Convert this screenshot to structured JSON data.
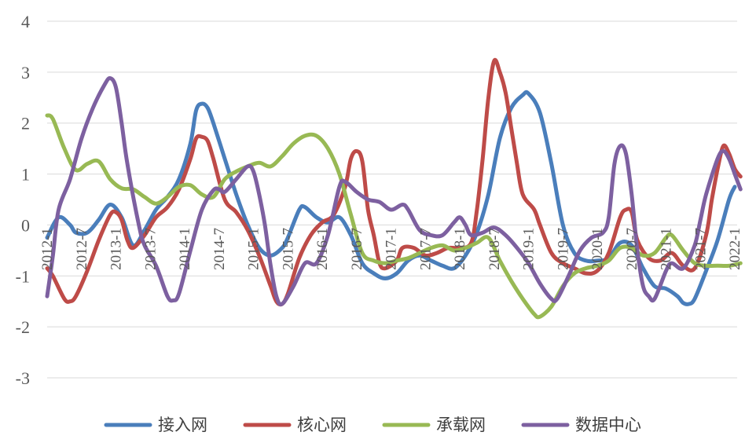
{
  "chart_data": {
    "type": "line",
    "title": "",
    "xlabel": "",
    "ylabel": "",
    "ylim": [
      -3,
      4
    ],
    "yticks": [
      -3,
      -2,
      -1,
      0,
      1,
      2,
      3,
      4
    ],
    "grid": "horizontal",
    "legend_position": "bottom",
    "x_start": "2012-1",
    "x_end": "2022-1",
    "x_tick_labels": [
      "2012-1",
      "2012-7",
      "2013-1",
      "2013-7",
      "2014-1",
      "2014-7",
      "2015-1",
      "2015-7",
      "2016-1",
      "2016-7",
      "2017-1",
      "2017-7",
      "2018-1",
      "2018-7",
      "2019-1",
      "2019-7",
      "2020-1",
      "2020-7",
      "2021-1",
      "2021-7",
      "2022-1"
    ],
    "series": [
      {
        "name": "接入网",
        "color": "#4a7ebb",
        "points": [
          [
            "2012-1",
            -0.25
          ],
          [
            "2012-3",
            0.15
          ],
          [
            "2012-5",
            0.0
          ],
          [
            "2012-6",
            -0.15
          ],
          [
            "2012-8",
            -0.15
          ],
          [
            "2012-10",
            0.1
          ],
          [
            "2012-12",
            0.4
          ],
          [
            "2013-2",
            0.15
          ],
          [
            "2013-4",
            -0.4
          ],
          [
            "2013-6",
            -0.1
          ],
          [
            "2013-8",
            0.3
          ],
          [
            "2013-10",
            0.55
          ],
          [
            "2013-12",
            0.9
          ],
          [
            "2014-2",
            1.6
          ],
          [
            "2014-3",
            2.25
          ],
          [
            "2014-4",
            2.38
          ],
          [
            "2014-5",
            2.3
          ],
          [
            "2014-6",
            2.0
          ],
          [
            "2014-8",
            1.3
          ],
          [
            "2014-10",
            0.6
          ],
          [
            "2014-12",
            0.0
          ],
          [
            "2015-2",
            -0.45
          ],
          [
            "2015-4",
            -0.6
          ],
          [
            "2015-6",
            -0.45
          ],
          [
            "2015-7",
            -0.25
          ],
          [
            "2015-9",
            0.3
          ],
          [
            "2015-10",
            0.35
          ],
          [
            "2015-12",
            0.15
          ],
          [
            "2016-2",
            0.05
          ],
          [
            "2016-4",
            0.15
          ],
          [
            "2016-6",
            -0.2
          ],
          [
            "2016-8",
            -0.75
          ],
          [
            "2016-10",
            -0.95
          ],
          [
            "2016-12",
            -1.05
          ],
          [
            "2017-2",
            -0.95
          ],
          [
            "2017-4",
            -0.7
          ],
          [
            "2017-6",
            -0.6
          ],
          [
            "2017-8",
            -0.7
          ],
          [
            "2017-10",
            -0.8
          ],
          [
            "2017-12",
            -0.85
          ],
          [
            "2018-2",
            -0.6
          ],
          [
            "2018-4",
            -0.15
          ],
          [
            "2018-6",
            0.6
          ],
          [
            "2018-8",
            1.7
          ],
          [
            "2018-10",
            2.3
          ],
          [
            "2018-12",
            2.55
          ],
          [
            "2019-1",
            2.58
          ],
          [
            "2019-3",
            2.2
          ],
          [
            "2019-5",
            1.2
          ],
          [
            "2019-7",
            0.0
          ],
          [
            "2019-9",
            -0.55
          ],
          [
            "2019-11",
            -0.7
          ],
          [
            "2020-1",
            -0.7
          ],
          [
            "2020-3",
            -0.65
          ],
          [
            "2020-5",
            -0.35
          ],
          [
            "2020-7",
            -0.4
          ],
          [
            "2020-9",
            -0.85
          ],
          [
            "2020-11",
            -1.2
          ],
          [
            "2021-1",
            -1.25
          ],
          [
            "2021-3",
            -1.4
          ],
          [
            "2021-4",
            -1.53
          ],
          [
            "2021-5",
            -1.55
          ],
          [
            "2021-6",
            -1.45
          ],
          [
            "2021-8",
            -0.9
          ],
          [
            "2021-10",
            -0.3
          ],
          [
            "2021-12",
            0.5
          ],
          [
            "2022-1",
            0.75
          ]
        ]
      },
      {
        "name": "核心网",
        "color": "#be4b48",
        "points": [
          [
            "2012-1",
            -0.85
          ],
          [
            "2012-2",
            -1.0
          ],
          [
            "2012-4",
            -1.45
          ],
          [
            "2012-5",
            -1.5
          ],
          [
            "2012-6",
            -1.4
          ],
          [
            "2012-8",
            -0.9
          ],
          [
            "2012-10",
            -0.3
          ],
          [
            "2012-12",
            0.2
          ],
          [
            "2013-1",
            0.25
          ],
          [
            "2013-2",
            0.1
          ],
          [
            "2013-3",
            -0.3
          ],
          [
            "2013-4",
            -0.45
          ],
          [
            "2013-6",
            -0.2
          ],
          [
            "2013-8",
            0.15
          ],
          [
            "2013-10",
            0.35
          ],
          [
            "2013-12",
            0.7
          ],
          [
            "2014-2",
            1.3
          ],
          [
            "2014-3",
            1.7
          ],
          [
            "2014-4",
            1.73
          ],
          [
            "2014-5",
            1.65
          ],
          [
            "2014-6",
            1.3
          ],
          [
            "2014-8",
            0.5
          ],
          [
            "2014-10",
            0.25
          ],
          [
            "2014-12",
            -0.1
          ],
          [
            "2015-2",
            -0.6
          ],
          [
            "2015-4",
            -1.2
          ],
          [
            "2015-5",
            -1.5
          ],
          [
            "2015-6",
            -1.55
          ],
          [
            "2015-7",
            -1.35
          ],
          [
            "2015-9",
            -0.65
          ],
          [
            "2015-11",
            -0.2
          ],
          [
            "2016-1",
            0.05
          ],
          [
            "2016-3",
            0.2
          ],
          [
            "2016-5",
            0.75
          ],
          [
            "2016-6",
            1.3
          ],
          [
            "2016-7",
            1.45
          ],
          [
            "2016-8",
            1.25
          ],
          [
            "2016-9",
            0.3
          ],
          [
            "2016-10",
            -0.2
          ],
          [
            "2016-11",
            -0.75
          ],
          [
            "2016-12",
            -0.85
          ],
          [
            "2017-2",
            -0.7
          ],
          [
            "2017-3",
            -0.45
          ],
          [
            "2017-5",
            -0.45
          ],
          [
            "2017-7",
            -0.6
          ],
          [
            "2017-9",
            -0.55
          ],
          [
            "2017-11",
            -0.45
          ],
          [
            "2018-1",
            -0.45
          ],
          [
            "2018-3",
            -0.35
          ],
          [
            "2018-4",
            0.3
          ],
          [
            "2018-5",
            1.3
          ],
          [
            "2018-6",
            2.5
          ],
          [
            "2018-7",
            3.22
          ],
          [
            "2018-8",
            3.0
          ],
          [
            "2018-9",
            2.6
          ],
          [
            "2018-10",
            1.9
          ],
          [
            "2018-11",
            1.2
          ],
          [
            "2018-12",
            0.6
          ],
          [
            "2019-2",
            0.3
          ],
          [
            "2019-3",
            0.0
          ],
          [
            "2019-5",
            -0.55
          ],
          [
            "2019-7",
            -0.75
          ],
          [
            "2019-9",
            -0.85
          ],
          [
            "2019-11",
            -0.95
          ],
          [
            "2020-1",
            -0.9
          ],
          [
            "2020-3",
            -0.55
          ],
          [
            "2020-5",
            0.15
          ],
          [
            "2020-6",
            0.3
          ],
          [
            "2020-7",
            0.25
          ],
          [
            "2020-8",
            -0.3
          ],
          [
            "2020-10",
            -0.65
          ],
          [
            "2020-12",
            -0.7
          ],
          [
            "2021-2",
            -0.55
          ],
          [
            "2021-4",
            -0.8
          ],
          [
            "2021-6",
            -0.85
          ],
          [
            "2021-8",
            -0.2
          ],
          [
            "2021-9",
            0.5
          ],
          [
            "2021-10",
            1.1
          ],
          [
            "2021-11",
            1.55
          ],
          [
            "2021-12",
            1.4
          ],
          [
            "2022-1",
            1.1
          ],
          [
            "2022-2",
            0.95
          ]
        ]
      },
      {
        "name": "承载网",
        "color": "#98b954",
        "points": [
          [
            "2012-1",
            2.15
          ],
          [
            "2012-2",
            2.08
          ],
          [
            "2012-4",
            1.5
          ],
          [
            "2012-6",
            1.08
          ],
          [
            "2012-8",
            1.2
          ],
          [
            "2012-10",
            1.25
          ],
          [
            "2012-12",
            0.9
          ],
          [
            "2013-2",
            0.72
          ],
          [
            "2013-4",
            0.7
          ],
          [
            "2013-6",
            0.55
          ],
          [
            "2013-8",
            0.42
          ],
          [
            "2013-10",
            0.55
          ],
          [
            "2013-12",
            0.75
          ],
          [
            "2014-2",
            0.78
          ],
          [
            "2014-4",
            0.6
          ],
          [
            "2014-6",
            0.55
          ],
          [
            "2014-8",
            0.9
          ],
          [
            "2014-10",
            1.05
          ],
          [
            "2014-12",
            1.15
          ],
          [
            "2015-2",
            1.22
          ],
          [
            "2015-4",
            1.15
          ],
          [
            "2015-6",
            1.35
          ],
          [
            "2015-8",
            1.6
          ],
          [
            "2015-10",
            1.75
          ],
          [
            "2015-12",
            1.75
          ],
          [
            "2016-2",
            1.5
          ],
          [
            "2016-4",
            1.0
          ],
          [
            "2016-6",
            0.2
          ],
          [
            "2016-8",
            -0.55
          ],
          [
            "2016-10",
            -0.7
          ],
          [
            "2016-12",
            -0.75
          ],
          [
            "2017-2",
            -0.7
          ],
          [
            "2017-4",
            -0.65
          ],
          [
            "2017-6",
            -0.55
          ],
          [
            "2017-8",
            -0.45
          ],
          [
            "2017-10",
            -0.4
          ],
          [
            "2017-12",
            -0.5
          ],
          [
            "2018-2",
            -0.45
          ],
          [
            "2018-4",
            -0.35
          ],
          [
            "2018-6",
            -0.25
          ],
          [
            "2018-8",
            -0.7
          ],
          [
            "2018-10",
            -1.1
          ],
          [
            "2018-12",
            -1.45
          ],
          [
            "2019-2",
            -1.75
          ],
          [
            "2019-3",
            -1.8
          ],
          [
            "2019-5",
            -1.6
          ],
          [
            "2019-7",
            -1.2
          ],
          [
            "2019-9",
            -0.95
          ],
          [
            "2019-11",
            -0.85
          ],
          [
            "2020-1",
            -0.8
          ],
          [
            "2020-3",
            -0.7
          ],
          [
            "2020-5",
            -0.45
          ],
          [
            "2020-7",
            -0.45
          ],
          [
            "2020-9",
            -0.6
          ],
          [
            "2020-11",
            -0.55
          ],
          [
            "2021-1",
            -0.25
          ],
          [
            "2021-2",
            -0.2
          ],
          [
            "2021-4",
            -0.5
          ],
          [
            "2021-6",
            -0.75
          ],
          [
            "2021-8",
            -0.8
          ],
          [
            "2021-10",
            -0.8
          ],
          [
            "2021-12",
            -0.8
          ],
          [
            "2022-2",
            -0.75
          ]
        ]
      },
      {
        "name": "数据中心",
        "color": "#7d60a0",
        "points": [
          [
            "2012-1",
            -1.4
          ],
          [
            "2012-2",
            -0.6
          ],
          [
            "2012-3",
            0.3
          ],
          [
            "2012-5",
            0.9
          ],
          [
            "2012-7",
            1.7
          ],
          [
            "2012-9",
            2.3
          ],
          [
            "2012-11",
            2.75
          ],
          [
            "2012-12",
            2.88
          ],
          [
            "2013-1",
            2.7
          ],
          [
            "2013-2",
            2.0
          ],
          [
            "2013-3",
            1.2
          ],
          [
            "2013-5",
            0.0
          ],
          [
            "2013-6",
            -0.4
          ],
          [
            "2013-8",
            -0.8
          ],
          [
            "2013-10",
            -1.4
          ],
          [
            "2013-11",
            -1.48
          ],
          [
            "2013-12",
            -1.35
          ],
          [
            "2014-2",
            -0.5
          ],
          [
            "2014-4",
            0.3
          ],
          [
            "2014-6",
            0.68
          ],
          [
            "2014-7",
            0.7
          ],
          [
            "2014-8",
            0.65
          ],
          [
            "2014-10",
            0.9
          ],
          [
            "2014-12",
            1.15
          ],
          [
            "2015-1",
            1.05
          ],
          [
            "2015-2",
            0.6
          ],
          [
            "2015-3",
            0.0
          ],
          [
            "2015-4",
            -0.8
          ],
          [
            "2015-5",
            -1.4
          ],
          [
            "2015-6",
            -1.55
          ],
          [
            "2015-8",
            -1.2
          ],
          [
            "2015-10",
            -0.75
          ],
          [
            "2015-12",
            -0.75
          ],
          [
            "2016-2",
            -0.2
          ],
          [
            "2016-4",
            0.75
          ],
          [
            "2016-5",
            0.85
          ],
          [
            "2016-7",
            0.65
          ],
          [
            "2016-9",
            0.5
          ],
          [
            "2016-11",
            0.45
          ],
          [
            "2017-1",
            0.3
          ],
          [
            "2017-3",
            0.4
          ],
          [
            "2017-4",
            0.3
          ],
          [
            "2017-6",
            -0.1
          ],
          [
            "2017-8",
            -0.2
          ],
          [
            "2017-10",
            -0.2
          ],
          [
            "2017-12",
            0.05
          ],
          [
            "2018-1",
            0.15
          ],
          [
            "2018-2",
            0.0
          ],
          [
            "2018-3",
            -0.2
          ],
          [
            "2018-5",
            -0.15
          ],
          [
            "2018-7",
            -0.05
          ],
          [
            "2018-9",
            -0.2
          ],
          [
            "2018-11",
            -0.45
          ],
          [
            "2019-1",
            -0.75
          ],
          [
            "2019-3",
            -1.15
          ],
          [
            "2019-5",
            -1.45
          ],
          [
            "2019-6",
            -1.45
          ],
          [
            "2019-8",
            -1.0
          ],
          [
            "2019-10",
            -0.5
          ],
          [
            "2019-12",
            -0.25
          ],
          [
            "2020-2",
            -0.15
          ],
          [
            "2020-3",
            0.15
          ],
          [
            "2020-4",
            1.2
          ],
          [
            "2020-5",
            1.55
          ],
          [
            "2020-6",
            1.4
          ],
          [
            "2020-7",
            0.6
          ],
          [
            "2020-8",
            -0.5
          ],
          [
            "2020-9",
            -1.2
          ],
          [
            "2020-10",
            -1.4
          ],
          [
            "2020-11",
            -1.45
          ],
          [
            "2021-1",
            -0.9
          ],
          [
            "2021-2",
            -0.75
          ],
          [
            "2021-4",
            -0.85
          ],
          [
            "2021-6",
            -0.4
          ],
          [
            "2021-7",
            0.1
          ],
          [
            "2021-8",
            0.6
          ],
          [
            "2021-10",
            1.3
          ],
          [
            "2021-11",
            1.45
          ],
          [
            "2021-12",
            1.3
          ],
          [
            "2022-1",
            1.0
          ],
          [
            "2022-2",
            0.7
          ]
        ]
      }
    ]
  }
}
